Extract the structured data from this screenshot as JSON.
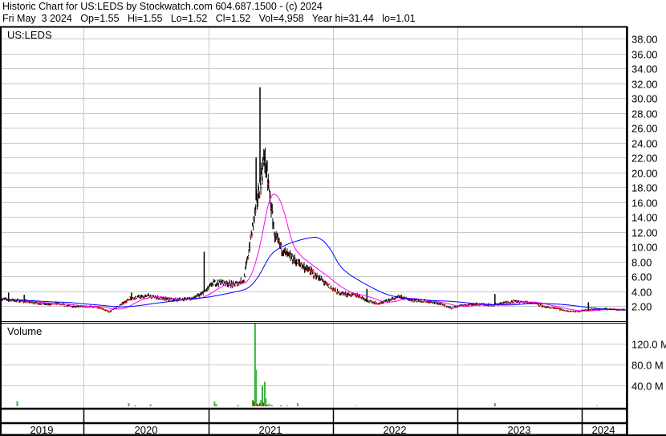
{
  "header": {
    "title": "Historic Chart for US:LEDS by Stockwatch.com 604.687.1500 - (c) 2024",
    "quote": "Fri May  3 2024   Op=1.55   Hi=1.55   Lo=1.52   Cl=1.52   Vol=4,958   Year hi=31.44   lo=1.01"
  },
  "colors": {
    "price": "#000000",
    "down": "#ff0000",
    "ma_short": "#ff00ff",
    "ma_long": "#0000ff",
    "vol_up": "#3cb43c",
    "vol_down": "#ff0000",
    "grid": "#c8c8c8"
  },
  "chart_data": [
    {
      "type": "line",
      "title": "US:LEDS",
      "ylim": [
        0,
        39
      ],
      "yticks": [
        "2.00",
        "4.00",
        "6.00",
        "8.00",
        "10.00",
        "12.00",
        "14.00",
        "16.00",
        "18.00",
        "20.00",
        "22.00",
        "24.00",
        "26.00",
        "28.00",
        "30.00",
        "32.00",
        "34.00",
        "36.00",
        "38.00"
      ],
      "xticks": [
        "2019",
        "2020",
        "2021",
        "2022",
        "2023",
        "2024"
      ],
      "grid": true,
      "series": [
        {
          "dates": [
            "2019-05",
            "2019-06",
            "2019-07",
            "2019-08",
            "2019-09",
            "2019-10",
            "2019-11",
            "2019-12",
            "2020-01",
            "2020-02",
            "2020-03",
            "2020-04",
            "2020-05",
            "2020-06",
            "2020-07",
            "2020-08",
            "2020-09",
            "2020-10",
            "2020-11",
            "2020-12",
            "2021-01",
            "2021-02",
            "2021-03",
            "2021-04",
            "2021-05",
            "2021-06",
            "2021-07",
            "2021-08",
            "2021-09",
            "2021-10",
            "2021-11",
            "2021-12",
            "2022-01",
            "2022-02",
            "2022-03",
            "2022-04",
            "2022-05",
            "2022-06",
            "2022-07",
            "2022-08",
            "2022-09",
            "2022-10",
            "2022-11",
            "2022-12",
            "2023-01",
            "2023-02",
            "2023-03",
            "2023-04",
            "2023-05",
            "2023-06",
            "2023-07",
            "2023-08",
            "2023-09",
            "2023-10",
            "2023-11",
            "2023-12",
            "2024-01",
            "2024-02",
            "2024-03",
            "2024-04",
            "2024-05"
          ],
          "close": [
            2.9,
            2.7,
            2.6,
            2.4,
            2.2,
            2.3,
            2.0,
            1.9,
            1.9,
            1.8,
            1.2,
            2.0,
            3.0,
            3.2,
            3.3,
            3.0,
            2.8,
            2.9,
            3.0,
            3.6,
            5.0,
            5.2,
            4.8,
            5.5,
            14.0,
            22.0,
            11.0,
            9.0,
            8.0,
            7.0,
            6.0,
            4.8,
            3.8,
            3.5,
            3.4,
            2.6,
            2.3,
            2.8,
            3.2,
            2.8,
            2.7,
            2.5,
            2.2,
            1.7,
            2.1,
            2.2,
            2.2,
            2.1,
            2.4,
            2.6,
            2.5,
            2.4,
            1.8,
            1.7,
            1.3,
            1.2,
            1.5,
            1.5,
            1.6,
            1.5,
            1.52
          ]
        }
      ],
      "spikes": [
        {
          "date": "2019-05-25",
          "high": 3.8
        },
        {
          "date": "2019-07-10",
          "high": 3.5
        },
        {
          "date": "2020-05-20",
          "high": 3.8
        },
        {
          "date": "2020-12-20",
          "high": 9.3
        },
        {
          "date": "2021-05-20",
          "high": 22.0
        },
        {
          "date": "2021-06-01",
          "high": 31.44
        },
        {
          "date": "2021-06-20",
          "high": 21.0
        },
        {
          "date": "2022-04-10",
          "high": 4.3
        },
        {
          "date": "2023-04-20",
          "high": 3.6
        },
        {
          "date": "2024-01-20",
          "high": 2.5
        }
      ]
    },
    {
      "type": "bar",
      "title": "Volume",
      "ylim": [
        0,
        160
      ],
      "yticks": [
        "40.0 M",
        "80.0 M",
        "120.0 M"
      ],
      "unit": "M",
      "bars": [
        {
          "date": "2019-06-20",
          "value": 10,
          "dir": "up"
        },
        {
          "date": "2020-05-12",
          "value": 6,
          "dir": "up"
        },
        {
          "date": "2020-06-01",
          "value": 1.5,
          "dir": "down"
        },
        {
          "date": "2020-07-15",
          "value": 3.5,
          "dir": "up"
        },
        {
          "date": "2021-01-20",
          "value": 9,
          "dir": "up"
        },
        {
          "date": "2021-01-25",
          "value": 4,
          "dir": "up"
        },
        {
          "date": "2021-03-28",
          "value": 1.5,
          "dir": "down"
        },
        {
          "date": "2021-05-10",
          "value": 12,
          "dir": "up"
        },
        {
          "date": "2021-05-13",
          "value": 10,
          "dir": "down"
        },
        {
          "date": "2021-05-17",
          "value": 160,
          "dir": "up"
        },
        {
          "date": "2021-05-20",
          "value": 70,
          "dir": "up"
        },
        {
          "date": "2021-05-24",
          "value": 5,
          "dir": "down"
        },
        {
          "date": "2021-05-28",
          "value": 3,
          "dir": "up"
        },
        {
          "date": "2021-06-01",
          "value": 6,
          "dir": "down"
        },
        {
          "date": "2021-06-04",
          "value": 12,
          "dir": "up"
        },
        {
          "date": "2021-06-08",
          "value": 40,
          "dir": "up"
        },
        {
          "date": "2021-06-11",
          "value": 7,
          "dir": "down"
        },
        {
          "date": "2021-06-15",
          "value": 47,
          "dir": "up"
        },
        {
          "date": "2021-06-18",
          "value": 15,
          "dir": "up"
        },
        {
          "date": "2021-06-22",
          "value": 3,
          "dir": "down"
        },
        {
          "date": "2021-06-28",
          "value": 5,
          "dir": "up"
        },
        {
          "date": "2021-07-05",
          "value": 2,
          "dir": "down"
        },
        {
          "date": "2021-08-01",
          "value": 1.5,
          "dir": "down"
        },
        {
          "date": "2021-08-20",
          "value": 1.5,
          "dir": "up"
        },
        {
          "date": "2021-09-20",
          "value": 6,
          "dir": "up"
        },
        {
          "date": "2022-03-10",
          "value": 1,
          "dir": "up"
        },
        {
          "date": "2023-04-20",
          "value": 6,
          "dir": "up"
        },
        {
          "date": "2024-02-15",
          "value": 1,
          "dir": "up"
        }
      ]
    }
  ]
}
